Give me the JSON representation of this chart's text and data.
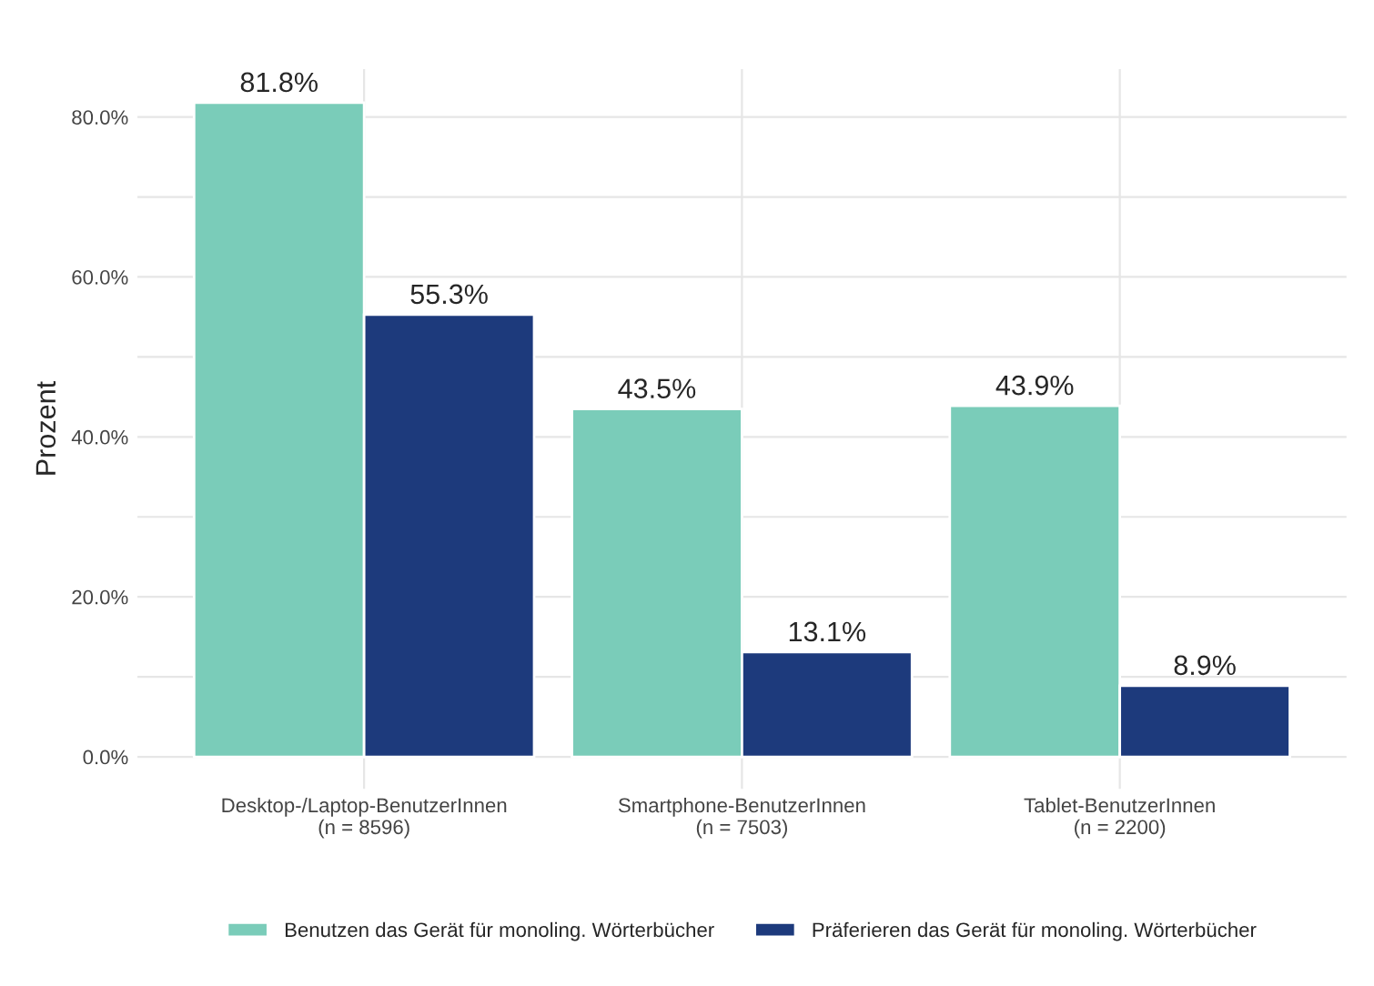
{
  "chart_data": {
    "type": "bar",
    "ylabel": "Prozent",
    "categories": [
      "Desktop-/Laptop-BenutzerInnen\n(n = 8596)",
      "Smartphone-BenutzerInnen\n(n = 7503)",
      "Tablet-BenutzerInnen\n(n = 2200)"
    ],
    "series": [
      {
        "name": "Benutzen das Gerät für monoling. Wörterbücher",
        "color": "#7accb9",
        "values": [
          81.8,
          43.5,
          43.9
        ],
        "value_labels": [
          "81.8%",
          "43.5%",
          "43.9%"
        ]
      },
      {
        "name": "Präferieren das Gerät für monoling. Wörterbücher",
        "color": "#1d3a7c",
        "values": [
          55.3,
          13.1,
          8.9
        ],
        "value_labels": [
          "55.3%",
          "13.1%",
          "8.9%"
        ]
      }
    ],
    "ylim": [
      -4,
      86
    ],
    "yticks": [
      {
        "value": 0,
        "label": "0.0%"
      },
      {
        "value": 10,
        "label": null
      },
      {
        "value": 20,
        "label": "20.0%"
      },
      {
        "value": 30,
        "label": null
      },
      {
        "value": 40,
        "label": "40.0%"
      },
      {
        "value": 50,
        "label": null
      },
      {
        "value": 60,
        "label": "60.0%"
      },
      {
        "value": 70,
        "label": null
      },
      {
        "value": 80,
        "label": "80.0%"
      }
    ],
    "grid": true,
    "legend": "bottom"
  }
}
